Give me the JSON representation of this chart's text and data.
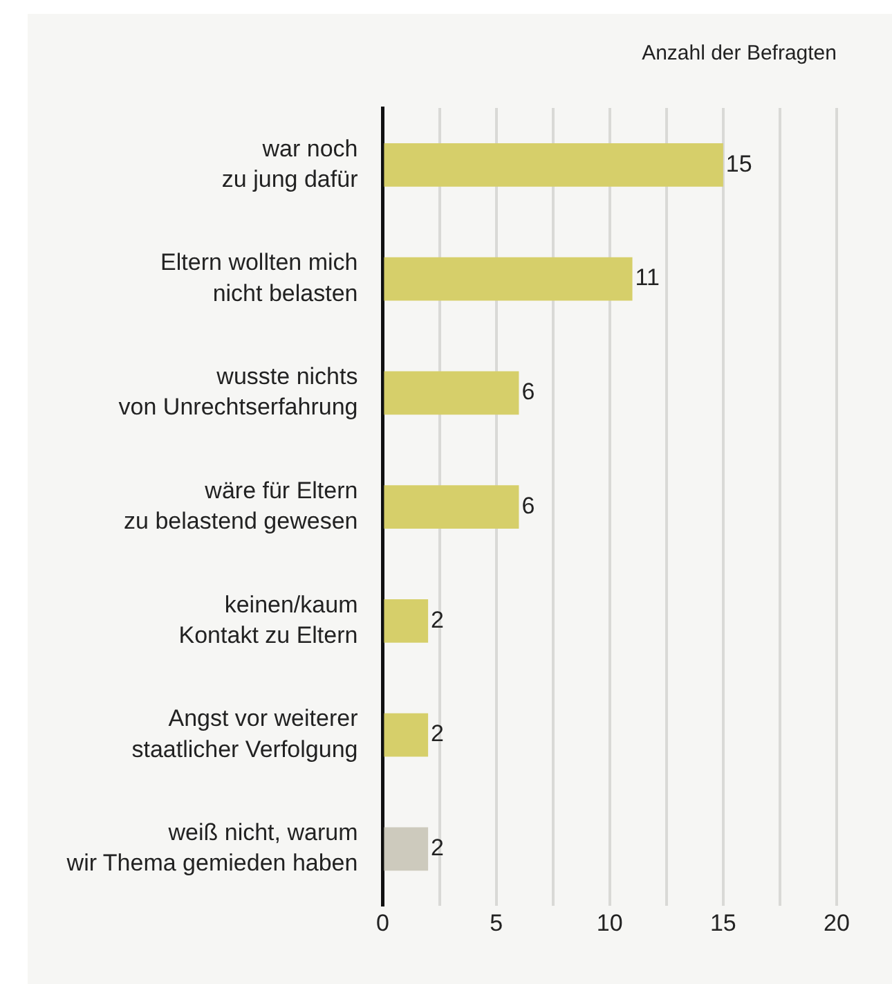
{
  "chart_data": {
    "type": "bar",
    "orientation": "horizontal",
    "xlabel": "Anzahl der Befragten",
    "categories": [
      "war noch\nzu jung dafür",
      "Eltern wollten mich\nnicht belasten",
      "wusste nichts\nvon Unrechtserfahrung",
      "wäre für Eltern\nzu belastend gewesen",
      "keinen/kaum\nKontakt zu Eltern",
      "Angst vor weiterer\nstaatlicher Verfolgung",
      "weiß nicht, warum\nwir Thema gemieden haben"
    ],
    "values": [
      15,
      11,
      6,
      6,
      2,
      2,
      2
    ],
    "colors": [
      "#d6cf6a",
      "#d6cf6a",
      "#d6cf6a",
      "#d6cf6a",
      "#d6cf6a",
      "#d6cf6a",
      "#cdcabd"
    ],
    "xlim": [
      0,
      20
    ],
    "xticks": [
      0,
      {
        "value": 2.5,
        "label": null
      },
      5,
      {
        "value": 7.5,
        "label": null
      },
      10,
      {
        "value": 12.5,
        "label": null
      },
      15,
      {
        "value": 17.5,
        "label": null
      },
      20
    ],
    "grid": "x",
    "data_labels": true,
    "legend": false
  }
}
